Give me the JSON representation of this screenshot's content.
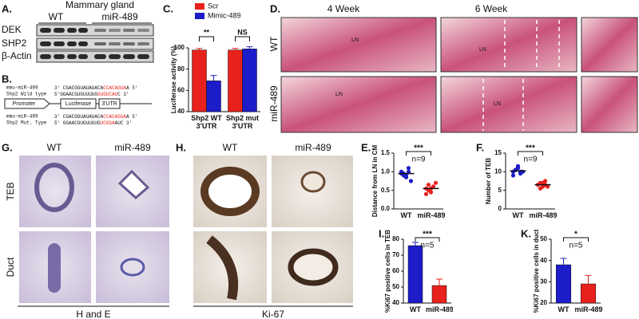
{
  "panel_a": {
    "label": "A.",
    "title": "Mammary  gland",
    "columns": [
      "WT",
      "miR-489"
    ],
    "rows": [
      "DEK",
      "SHP2",
      "β-Actin"
    ]
  },
  "panel_b": {
    "label": "B.",
    "wild": {
      "mirna_label": "mmu-miR-489",
      "mirna_seq": [
        "3' CGACGGUAUAUACA",
        "CCACAGUA",
        "A 5'"
      ],
      "target_label": "Shp2 Wild type",
      "target_seq": [
        "5'GGAACGUGUUUUG",
        "GUGUCAU",
        "C 3'"
      ]
    },
    "construct": [
      "Promoter",
      "Luciferase",
      "3'UTR"
    ],
    "mutant": {
      "mirna_label": "mmu-miR-489",
      "mirna_seq": [
        "3' CGACGGUAUAUACA",
        "CCACAGUA",
        "A 5'"
      ],
      "target_label": "Shp2 Mut. Type",
      "target_seq": [
        "5' GGAACGUGUUUUG",
        "UCGGA",
        "AUC 3'"
      ]
    }
  },
  "panel_d": {
    "label": "D.",
    "columns": [
      "4 Week",
      "6 Week"
    ],
    "rows": [
      "WT",
      "miR-489"
    ],
    "image_labels": [
      "LN",
      "LN",
      "LN",
      "LN"
    ]
  },
  "panel_g": {
    "label": "G.",
    "columns": [
      "WT",
      "miR-489"
    ],
    "rows": [
      "TEB",
      "Duct"
    ],
    "caption": "H and E"
  },
  "panel_h": {
    "label": "H.",
    "columns": [
      "WT",
      "miR-489"
    ],
    "caption": "Ki-67"
  },
  "chart_data": [
    {
      "label": "C.",
      "type": "bar",
      "ylabel": "Luciferase activity (%)",
      "categories": [
        "Shp2 WT 3'UTR",
        "Shp2 mut 3'UTR"
      ],
      "series": [
        {
          "name": "Scr",
          "color": "#e8211c",
          "values": [
            98,
            98
          ],
          "errors": [
            1.5,
            1.5
          ]
        },
        {
          "name": "Mimic-489",
          "color": "#1c1cc8",
          "values": [
            69,
            99
          ],
          "errors": [
            5,
            2
          ]
        }
      ],
      "ylim": [
        40,
        100
      ],
      "yticks": [
        40,
        60,
        80,
        100
      ],
      "annotations": [
        "**",
        "NS"
      ]
    },
    {
      "label": "E.",
      "type": "dot",
      "ylabel": "Distance from LN in CM",
      "categories": [
        "WT",
        "miR-489"
      ],
      "colors": [
        "#1c1cc8",
        "#e8211c"
      ],
      "points": [
        [
          1.0,
          0.95,
          0.9,
          1.1,
          0.75,
          0.95,
          0.9,
          0.85,
          1.0
        ],
        [
          0.55,
          0.65,
          0.45,
          0.6,
          0.7,
          0.4,
          0.5,
          0.55,
          0.6
        ]
      ],
      "means": [
        0.95,
        0.55
      ],
      "ylim": [
        0,
        1.5
      ],
      "yticks": [
        {
          "value": 0,
          "label": "0.0"
        },
        {
          "value": 0.5,
          "label": "0.5"
        },
        {
          "value": 1,
          "label": "1.0"
        },
        {
          "value": 1.5,
          "label": "1.5"
        }
      ],
      "annotations": [
        "***",
        "n=9"
      ]
    },
    {
      "label": "F.",
      "type": "dot",
      "ylabel": "Number of TEB",
      "categories": [
        "WT",
        "miR-489"
      ],
      "colors": [
        "#1c1cc8",
        "#e8211c"
      ],
      "points": [
        [
          10,
          10.5,
          11,
          9.5,
          10,
          9,
          10.5,
          11.5,
          10
        ],
        [
          6.5,
          7,
          6,
          7.5,
          6,
          6.5,
          5.5,
          7,
          6.5
        ]
      ],
      "means": [
        10.2,
        6.5
      ],
      "ylim": [
        0,
        15
      ],
      "yticks": [
        0,
        5,
        10,
        15
      ],
      "annotations": [
        "***",
        "n=9"
      ]
    },
    {
      "label": "I.",
      "type": "bar",
      "ylabel": "%Ki67 positive cells in TEB",
      "categories": [
        "WT",
        "miR-489"
      ],
      "colors": [
        "#1c1cc8",
        "#e8211c"
      ],
      "values": [
        76,
        51
      ],
      "errors": [
        2,
        4
      ],
      "ylim": [
        40,
        80
      ],
      "yticks": [
        40,
        50,
        60,
        70,
        80
      ],
      "annotations": [
        "***",
        "n=5"
      ]
    },
    {
      "label": "K.",
      "type": "bar",
      "ylabel": "%Ki67 positive cells in duct",
      "categories": [
        "WT",
        "miR-489"
      ],
      "colors": [
        "#1c1cc8",
        "#e8211c"
      ],
      "values": [
        38,
        29
      ],
      "errors": [
        3,
        4
      ],
      "ylim": [
        20,
        50
      ],
      "yticks": [
        20,
        30,
        40,
        50
      ],
      "annotations": [
        "*",
        "n=5"
      ]
    }
  ]
}
